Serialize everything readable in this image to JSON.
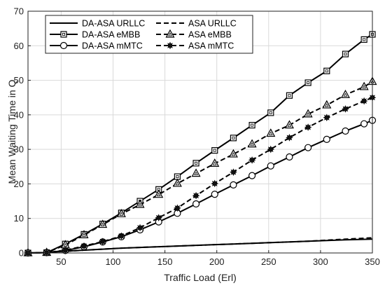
{
  "chart_data": {
    "type": "line",
    "title": "",
    "xlabel": "Traffic Load (Erl)",
    "ylabel": "Mean Waiting Time in Q",
    "xlim": [
      18,
      350
    ],
    "ylim": [
      0,
      70
    ],
    "x_ticks": [
      "50",
      "100",
      "150",
      "200",
      "250",
      "300",
      "350"
    ],
    "y_ticks": [
      "0",
      "10",
      "20",
      "30",
      "40",
      "50",
      "60",
      "70"
    ],
    "grid": true,
    "legend_position": "top-left",
    "series": [
      {
        "name": "DA-ASA URLLC",
        "color": "#000000",
        "dash": "solid",
        "marker": "none",
        "points": [
          [
            18,
            0
          ],
          [
            36,
            0.1
          ],
          [
            54,
            0.5
          ],
          [
            72,
            0.8
          ],
          [
            90,
            1.1
          ],
          [
            108,
            1.4
          ],
          [
            126,
            1.6
          ],
          [
            144,
            1.8
          ],
          [
            162,
            2.0
          ],
          [
            180,
            2.2
          ],
          [
            198,
            2.4
          ],
          [
            216,
            2.6
          ],
          [
            234,
            2.8
          ],
          [
            252,
            3.0
          ],
          [
            270,
            3.2
          ],
          [
            288,
            3.4
          ],
          [
            306,
            3.6
          ],
          [
            324,
            3.8
          ],
          [
            350,
            4.0
          ]
        ]
      },
      {
        "name": "ASA URLLC",
        "color": "#000000",
        "dash": "dashed",
        "marker": "none",
        "points": [
          [
            18,
            0
          ],
          [
            36,
            0.1
          ],
          [
            54,
            0.5
          ],
          [
            72,
            0.8
          ],
          [
            90,
            1.1
          ],
          [
            108,
            1.4
          ],
          [
            126,
            1.6
          ],
          [
            144,
            1.8
          ],
          [
            162,
            2.0
          ],
          [
            180,
            2.2
          ],
          [
            198,
            2.4
          ],
          [
            216,
            2.6
          ],
          [
            234,
            2.8
          ],
          [
            252,
            3.0
          ],
          [
            270,
            3.2
          ],
          [
            288,
            3.4
          ],
          [
            306,
            3.7
          ],
          [
            324,
            4.0
          ],
          [
            350,
            4.4
          ]
        ]
      },
      {
        "name": "DA-ASA eMBB",
        "color": "#000000",
        "dash": "solid",
        "marker": "square",
        "points": [
          [
            18,
            0
          ],
          [
            36,
            0.1
          ],
          [
            54,
            2.6
          ],
          [
            72,
            5.4
          ],
          [
            90,
            8.4
          ],
          [
            108,
            11.6
          ],
          [
            126,
            15.0
          ],
          [
            144,
            18.4
          ],
          [
            162,
            22.1
          ],
          [
            180,
            26.0
          ],
          [
            198,
            29.7
          ],
          [
            216,
            33.3
          ],
          [
            234,
            37.0
          ],
          [
            252,
            40.6
          ],
          [
            270,
            45.6
          ],
          [
            288,
            49.3
          ],
          [
            306,
            52.7
          ],
          [
            324,
            57.6
          ],
          [
            342,
            61.8
          ],
          [
            350,
            63.3
          ]
        ]
      },
      {
        "name": "ASA eMBB",
        "color": "#000000",
        "dash": "dashed",
        "marker": "triangle",
        "points": [
          [
            18,
            0
          ],
          [
            36,
            0.1
          ],
          [
            54,
            2.3
          ],
          [
            72,
            5.2
          ],
          [
            90,
            8.2
          ],
          [
            108,
            11.3
          ],
          [
            126,
            14.0
          ],
          [
            144,
            16.9
          ],
          [
            162,
            20.1
          ],
          [
            180,
            23.0
          ],
          [
            198,
            25.9
          ],
          [
            216,
            28.6
          ],
          [
            234,
            31.5
          ],
          [
            252,
            34.6
          ],
          [
            270,
            37.0
          ],
          [
            288,
            40.2
          ],
          [
            306,
            42.8
          ],
          [
            324,
            45.8
          ],
          [
            342,
            48.1
          ],
          [
            350,
            49.6
          ]
        ]
      },
      {
        "name": "DA-ASA mMTC",
        "color": "#000000",
        "dash": "solid",
        "marker": "circle",
        "points": [
          [
            18,
            0
          ],
          [
            36,
            0.1
          ],
          [
            54,
            0.7
          ],
          [
            72,
            1.8
          ],
          [
            90,
            3.2
          ],
          [
            108,
            4.7
          ],
          [
            126,
            6.7
          ],
          [
            144,
            9.0
          ],
          [
            162,
            11.5
          ],
          [
            180,
            14.2
          ],
          [
            198,
            17.0
          ],
          [
            216,
            19.7
          ],
          [
            234,
            22.4
          ],
          [
            252,
            25.2
          ],
          [
            270,
            27.8
          ],
          [
            288,
            30.5
          ],
          [
            306,
            32.9
          ],
          [
            324,
            35.3
          ],
          [
            342,
            37.4
          ],
          [
            350,
            38.4
          ]
        ]
      },
      {
        "name": "ASA mMTC",
        "color": "#000000",
        "dash": "dashed",
        "marker": "star",
        "points": [
          [
            18,
            0
          ],
          [
            36,
            0.1
          ],
          [
            54,
            0.8
          ],
          [
            72,
            2.0
          ],
          [
            90,
            3.3
          ],
          [
            108,
            4.9
          ],
          [
            126,
            7.3
          ],
          [
            144,
            10.2
          ],
          [
            162,
            13.0
          ],
          [
            180,
            16.6
          ],
          [
            198,
            20.1
          ],
          [
            216,
            23.4
          ],
          [
            234,
            26.9
          ],
          [
            252,
            30.0
          ],
          [
            270,
            33.4
          ],
          [
            288,
            36.4
          ],
          [
            306,
            39.2
          ],
          [
            324,
            41.7
          ],
          [
            342,
            44.0
          ],
          [
            350,
            45.0
          ]
        ]
      }
    ]
  }
}
